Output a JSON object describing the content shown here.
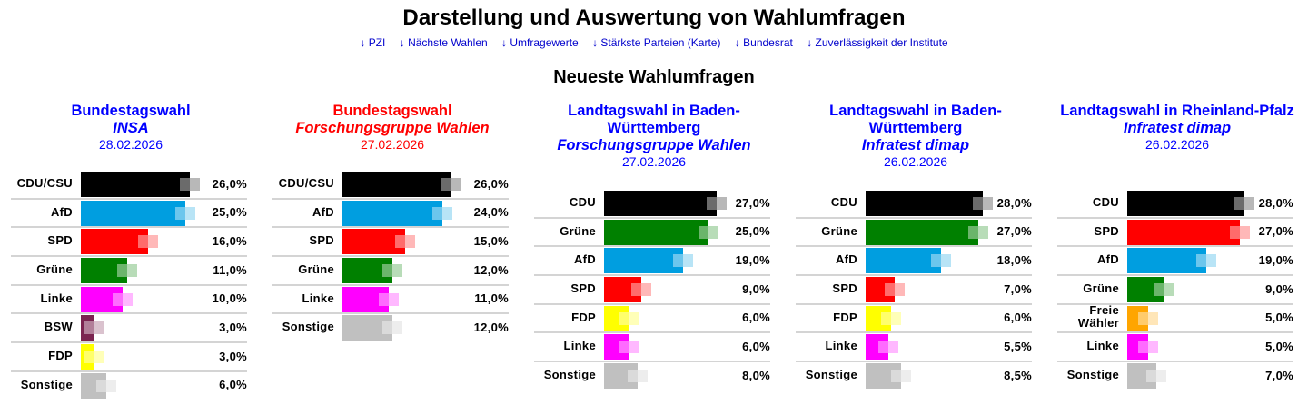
{
  "header": {
    "title": "Darstellung und Auswertung von Wahlumfragen",
    "nav_links": [
      {
        "label": "↓ PZI"
      },
      {
        "label": "↓ Nächste Wahlen"
      },
      {
        "label": "↓ Umfragewerte"
      },
      {
        "label": "↓ Stärkste Parteien (Karte)"
      },
      {
        "label": "↓ Bundesrat"
      },
      {
        "label": "↓ Zuverlässigkeit der Institute"
      }
    ],
    "section_title": "Neueste Wahlumfragen"
  },
  "colors": {
    "link": "#0000cc",
    "highlight_red": "#ff0000",
    "CDU/CSU": "#000000",
    "CDU": "#000000",
    "AfD": "#009ee0",
    "SPD": "#ff0000",
    "Grüne": "#008000",
    "Linke": "#ff00ff",
    "BSW": "#7b2450",
    "FDP": "#ffff00",
    "Freie Wähler": "#ffa500",
    "Sonstige": "#c0c0c0"
  },
  "chart_data": [
    {
      "type": "bar",
      "title": "Bundestagswahl",
      "institute": "INSA",
      "date": "28.02.2026",
      "title_color": "#0000ff",
      "categories": [
        "CDU/CSU",
        "AfD",
        "SPD",
        "Grüne",
        "Linke",
        "BSW",
        "FDP",
        "Sonstige"
      ],
      "values": [
        26.0,
        25.0,
        16.0,
        11.0,
        10.0,
        3.0,
        3.0,
        6.0
      ],
      "value_labels": [
        "26,0%",
        "25,0%",
        "16,0%",
        "11,0%",
        "10,0%",
        "3,0%",
        "3,0%",
        "6,0%"
      ],
      "unit": "%",
      "orientation": "horizontal"
    },
    {
      "type": "bar",
      "title": "Bundestagswahl",
      "institute": "Forschungsgruppe Wahlen",
      "date": "27.02.2026",
      "title_color": "#ff0000",
      "categories": [
        "CDU/CSU",
        "AfD",
        "SPD",
        "Grüne",
        "Linke",
        "Sonstige"
      ],
      "values": [
        26.0,
        24.0,
        15.0,
        12.0,
        11.0,
        12.0
      ],
      "value_labels": [
        "26,0%",
        "24,0%",
        "15,0%",
        "12,0%",
        "11,0%",
        "12,0%"
      ],
      "unit": "%",
      "orientation": "horizontal"
    },
    {
      "type": "bar",
      "title": "Landtagswahl in Baden-Württemberg",
      "institute": "Forschungsgruppe Wahlen",
      "date": "27.02.2026",
      "title_color": "#0000ff",
      "categories": [
        "CDU",
        "Grüne",
        "AfD",
        "SPD",
        "FDP",
        "Linke",
        "Sonstige"
      ],
      "values": [
        27.0,
        25.0,
        19.0,
        9.0,
        6.0,
        6.0,
        8.0
      ],
      "value_labels": [
        "27,0%",
        "25,0%",
        "19,0%",
        "9,0%",
        "6,0%",
        "6,0%",
        "8,0%"
      ],
      "unit": "%",
      "orientation": "horizontal"
    },
    {
      "type": "bar",
      "title": "Landtagswahl in Baden-Württemberg",
      "institute": "Infratest dimap",
      "date": "26.02.2026",
      "title_color": "#0000ff",
      "categories": [
        "CDU",
        "Grüne",
        "AfD",
        "SPD",
        "FDP",
        "Linke",
        "Sonstige"
      ],
      "values": [
        28.0,
        27.0,
        18.0,
        7.0,
        6.0,
        5.5,
        8.5
      ],
      "value_labels": [
        "28,0%",
        "27,0%",
        "18,0%",
        "7,0%",
        "6,0%",
        "5,5%",
        "8,5%"
      ],
      "unit": "%",
      "orientation": "horizontal"
    },
    {
      "type": "bar",
      "title": "Landtagswahl in Rheinland-Pfalz",
      "institute": "Infratest dimap",
      "date": "26.02.2026",
      "title_color": "#0000ff",
      "categories": [
        "CDU",
        "SPD",
        "AfD",
        "Grüne",
        "Freie Wähler",
        "Linke",
        "Sonstige"
      ],
      "values": [
        28.0,
        27.0,
        19.0,
        9.0,
        5.0,
        5.0,
        7.0
      ],
      "value_labels": [
        "28,0%",
        "27,0%",
        "19,0%",
        "9,0%",
        "5,0%",
        "5,0%",
        "7,0%"
      ],
      "unit": "%",
      "orientation": "horizontal"
    }
  ]
}
